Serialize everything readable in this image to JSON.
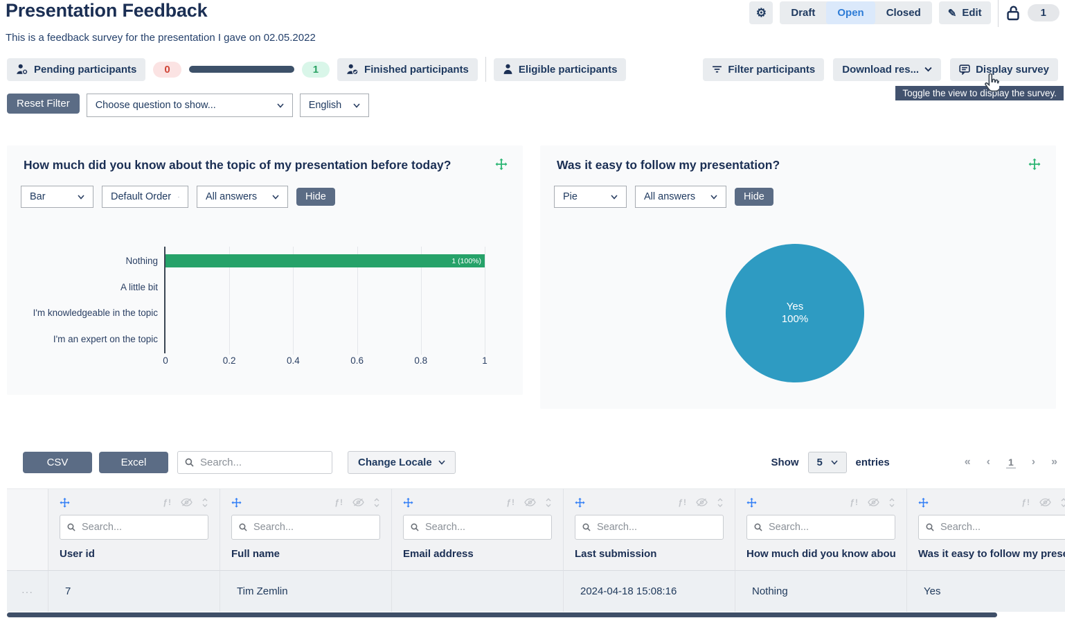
{
  "header": {
    "title": "Presentation Feedback",
    "subtitle": "This is a feedback survey for the presentation I gave on 02.05.2022",
    "status_tabs": [
      {
        "label": "Draft",
        "active": false
      },
      {
        "label": "Open",
        "active": true
      },
      {
        "label": "Closed",
        "active": false
      }
    ],
    "edit_label": "Edit",
    "response_count": "1"
  },
  "toolbar": {
    "pending_label": "Pending participants",
    "pending_count": "0",
    "finished_count": "1",
    "finished_label": "Finished participants",
    "eligible_label": "Eligible participants",
    "filter_label": "Filter participants",
    "download_label": "Download res...",
    "display_label": "Display survey",
    "tooltip": "Toggle the view to display the survey."
  },
  "filters": {
    "reset_label": "Reset Filter",
    "question_select": "Choose question to show...",
    "language_select": "English"
  },
  "cards": [
    {
      "chart_type": "Bar",
      "order_select": "Default Order",
      "answers_select": "All answers",
      "hide_label": "Hide"
    },
    {
      "chart_type": "Pie",
      "answers_select": "All answers",
      "hide_label": "Hide"
    }
  ],
  "chart_data": [
    {
      "type": "bar",
      "orientation": "horizontal",
      "title": "How much did you know about the topic of my presentation before today?",
      "categories": [
        "Nothing",
        "A little bit",
        "I'm knowledgeable in the topic",
        "I'm an expert on the topic"
      ],
      "values": [
        1,
        0,
        0,
        0
      ],
      "value_labels": [
        "1 (100%)",
        "",
        "",
        ""
      ],
      "xlim": [
        0,
        1
      ],
      "xticks": [
        "0",
        "0.2",
        "0.4",
        "0.6",
        "0.8",
        "1"
      ],
      "bar_color": "#26a269",
      "grid": true,
      "legend": "none"
    },
    {
      "type": "pie",
      "title": "Was it easy to follow my presentation?",
      "labels": [
        "Yes"
      ],
      "values": [
        100
      ],
      "value_labels": [
        "100%"
      ],
      "color": "#2e9bc2",
      "legend": "none"
    }
  ],
  "table": {
    "csv_label": "CSV",
    "excel_label": "Excel",
    "search_placeholder": "Search...",
    "change_locale_label": "Change Locale",
    "show_label": "Show",
    "page_size": "5",
    "entries_label": "entries",
    "pagination": {
      "first": "«",
      "prev": "‹",
      "page": "1",
      "next": "›",
      "last": "»"
    },
    "column_search_placeholder": "Search...",
    "columns": [
      "User id",
      "Full name",
      "Email address",
      "Last submission",
      "How much did you know about the topic of my presentation before today?",
      "Was it easy to follow my presentation?"
    ],
    "row": {
      "actions": "···",
      "user_id": "7",
      "full_name": "Tim Zemlin",
      "email": "",
      "last_submission": "2024-04-18 15:08:16",
      "q_topic": "Nothing",
      "q_follow": "Yes"
    }
  }
}
